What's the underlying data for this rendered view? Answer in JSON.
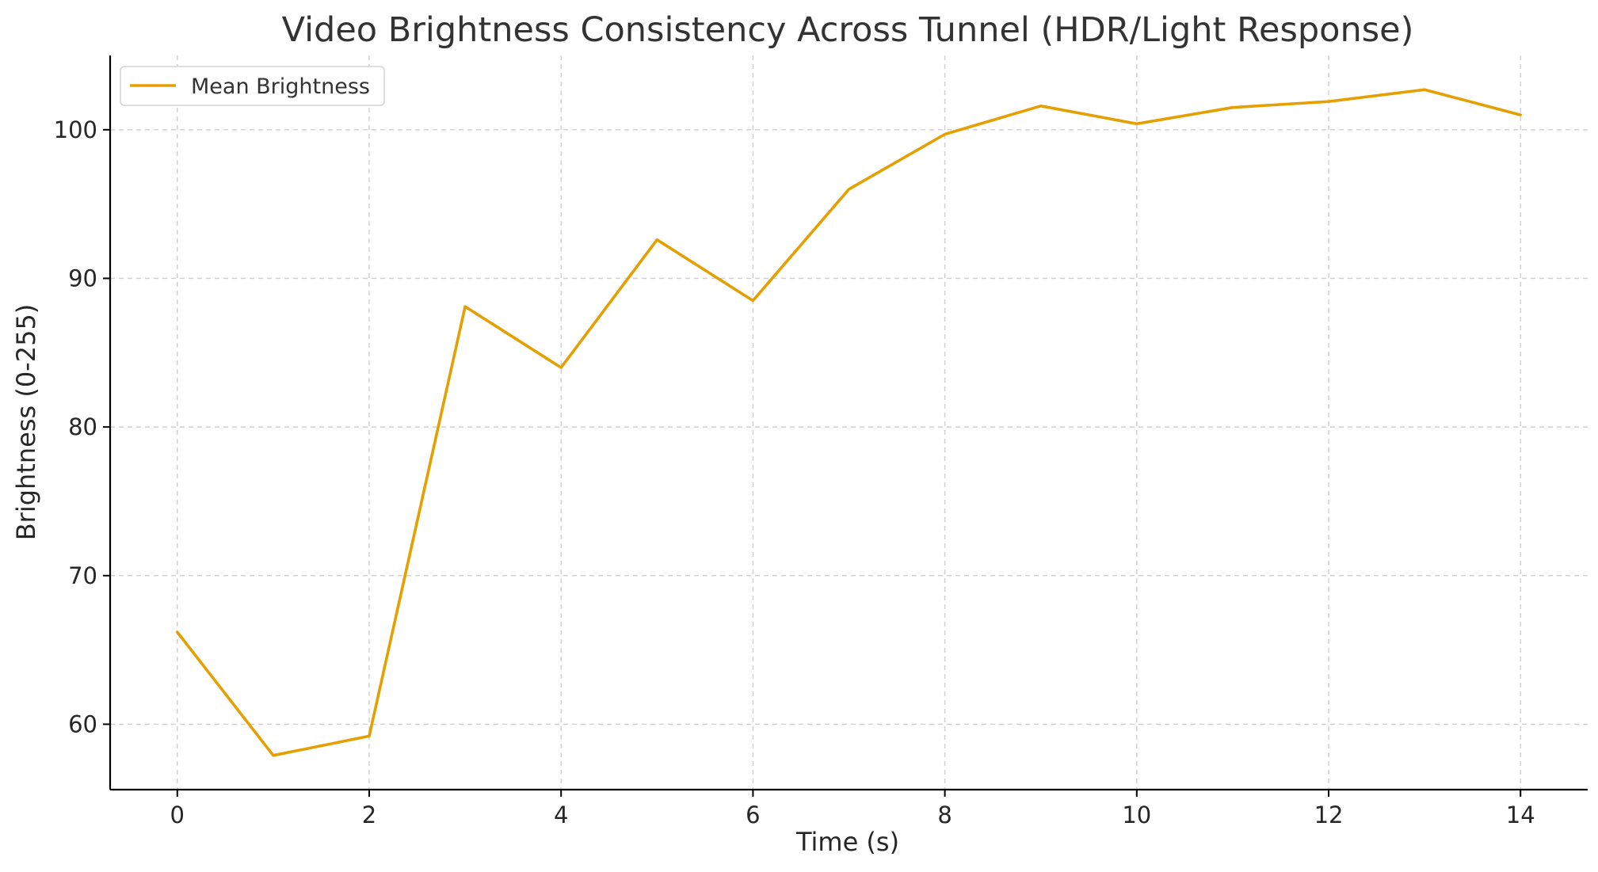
{
  "chart_data": {
    "type": "line",
    "title": "Video Brightness Consistency Across Tunnel (HDR/Light Response)",
    "xlabel": "Time (s)",
    "ylabel": "Brightness (0-255)",
    "x": [
      0,
      1,
      2,
      3,
      4,
      5,
      6,
      7,
      8,
      9,
      10,
      11,
      12,
      13,
      14
    ],
    "series": [
      {
        "name": "Mean Brightness",
        "color": "#E69F00",
        "values": [
          66.2,
          57.9,
          59.2,
          88.1,
          84.0,
          92.6,
          88.5,
          96.0,
          99.7,
          101.6,
          100.4,
          101.5,
          101.9,
          102.7,
          101.0
        ]
      }
    ],
    "xlim": [
      -0.7,
      14.7
    ],
    "ylim": [
      55.6,
      105.0
    ],
    "xticks": [
      0,
      2,
      4,
      6,
      8,
      10,
      12,
      14
    ],
    "yticks": [
      60,
      70,
      80,
      90,
      100
    ],
    "grid": true,
    "legend_position": "top-left"
  }
}
